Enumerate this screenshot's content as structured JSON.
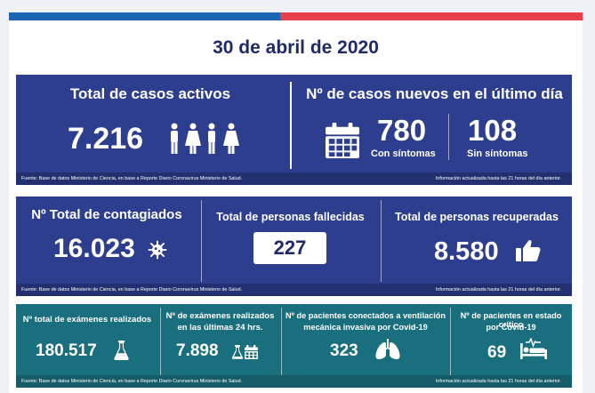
{
  "date": "30 de abril de 2020",
  "top": {
    "active_title": "Total de casos activos",
    "active_value": "7.216",
    "new_title": "Nº de casos nuevos en el último día",
    "with_symptoms_value": "780",
    "with_symptoms_label": "Con síntomas",
    "without_symptoms_value": "108",
    "without_symptoms_label": "Sin síntomas",
    "source": "Fuente: Base de datos Ministerio de Ciencia, en base a Reporte Diario Coronavirus Ministerio de Salud.",
    "updated": "Información actualizada hasta las 21 horas  del día anterior."
  },
  "middle": {
    "infected_title": "Nº Total de contagiados",
    "infected_value": "16.023",
    "deaths_title": "Total de personas fallecidas",
    "deaths_value": "227",
    "recovered_title": "Total de personas recuperadas",
    "recovered_value": "8.580",
    "source": "Fuente: Base de datos Ministerio de Ciencia, en base a Reporte Diario Coronavirus Ministerio de Salud.",
    "updated": "Información actualizada hasta las 21 horas  del día anterior."
  },
  "bottom": {
    "exams_title": "Nº total de exámenes realizados",
    "exams_value": "180.517",
    "exams24_title_1": "Nº de exámenes realizados",
    "exams24_title_2": "en las últimas 24 hrs.",
    "exams24_value": "7.898",
    "ventilation_title_1": "Nº de pacientes conectados a ventilación",
    "ventilation_title_2": "mecánica invasiva por Covid-19",
    "ventilation_value": "323",
    "critical_title_1": "Nº de pacientes en estado crítico",
    "critical_title_2": "por Covid-19",
    "critical_value": "69",
    "source": "Fuente: Base de datos Ministerio de Ciencia, en base a Reporte Diario Coronavirus Ministerio de Salud.",
    "updated": "Información actualizada hasta las 21 horas  del día anterior."
  },
  "colors": {
    "navy": "#2d3e8f",
    "teal": "#1a6f7e",
    "flag_blue": "#1c64b4",
    "flag_red": "#e8404a",
    "date_text": "#1f2a6b"
  },
  "icons": [
    "people-icon",
    "calendar-icon",
    "virus-icon",
    "thumbs-up-icon",
    "flask-icon",
    "flask-calendar-icon",
    "lungs-icon",
    "hospital-bed-icon"
  ]
}
